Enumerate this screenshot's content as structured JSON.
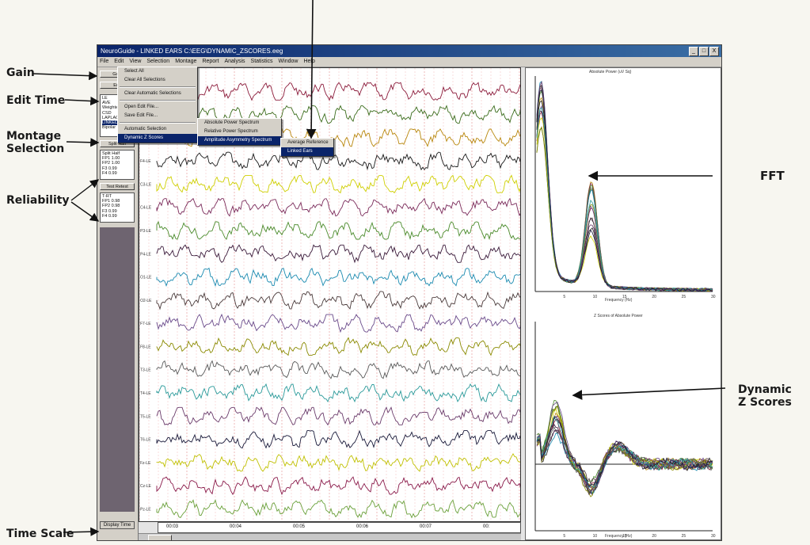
{
  "annotations": {
    "gain": "Gain",
    "edit_time": "Edit Time",
    "montage": "Montage\nSelection",
    "reliability": "Reliability",
    "time_scale": "Time Scale",
    "fft": "FFT",
    "dynamic_z": "Dynamic\nZ Scores"
  },
  "window": {
    "title": "NeuroGuide - LINKED EARS  C:\\EEG\\DYNAMIC_ZSCORES.eeg",
    "buttons": [
      "_",
      "□",
      "X"
    ]
  },
  "menubar": [
    "File",
    "Edit",
    "View",
    "Selection",
    "Montage",
    "Report",
    "Analysis",
    "Statistics",
    "Window",
    "Help"
  ],
  "edit_menu": {
    "items": [
      "Select All",
      "Clear All Selections",
      "Clear Automatic Selections",
      "Open Edit File...",
      "Save Edit File...",
      "Automatic Selection",
      "Dynamic Z Scores"
    ]
  },
  "sub_menu": {
    "items": [
      "Absolute Power Spectrum",
      "Relative Power Spectrum",
      "Amplitude Asymmetry Spectrum"
    ]
  },
  "sub_menu2": {
    "items": [
      "Average Reference",
      "Linked Ears"
    ]
  },
  "left_panel": {
    "gain_label": "Gain",
    "edit_label": "Edit",
    "montage_items": [
      "LE",
      "AVE",
      "Weighted",
      "CSD",
      "LAPLACIAN",
      "LINKED EARS",
      "Bipolar"
    ],
    "montage_selected": "LINKED EARS",
    "split_button": "Split Half",
    "reliability_header": "Split Half",
    "reliability_items": [
      "FP1 1.00",
      "FP2 1.00",
      "F3  0.99",
      "F4  0.99"
    ],
    "retest_button": "Test Retest",
    "retest_header": "T-RT",
    "retest_items": [
      "FP1 0.98",
      "FP2 0.98",
      "F3  0.99",
      "F4  0.99"
    ],
    "display_time": "Display Time"
  },
  "eeg": {
    "channels": [
      "Fp1-LE",
      "Fp2-LE",
      "F3-LE",
      "F4-LE",
      "C3-LE",
      "C4-LE",
      "P3-LE",
      "P4-LE",
      "O1-LE",
      "O2-LE",
      "F7-LE",
      "F8-LE",
      "T3-LE",
      "T4-LE",
      "T5-LE",
      "T6-LE",
      "Fz-LE",
      "Cz-LE",
      "Pz-LE"
    ],
    "times": [
      "00:03",
      "00:04",
      "00:05",
      "00:06",
      "00:07",
      "00:"
    ]
  },
  "fft_chart": {
    "title": "Absolute Power (uV Sq)",
    "xlabel": "Frequency (Hz)",
    "xticks": [
      "5",
      "10",
      "15",
      "20",
      "25",
      "30"
    ]
  },
  "z_chart": {
    "title": "Z Scores of Absolute Power",
    "xlabel": "Frequency (Hz)",
    "xticks": [
      "5",
      "10",
      "15",
      "20",
      "25",
      "30"
    ]
  },
  "colors": {
    "accent": "#0a246a",
    "trace_palette": [
      "#8b1a3a",
      "#3a6b1a",
      "#b8860b",
      "#1a1a1a",
      "#cfcf00",
      "#7a2a5a",
      "#4a8a2a",
      "#3a1a3a",
      "#1a8ab0",
      "#4a3a3a",
      "#6a4a8a",
      "#8a8a00",
      "#5a5a5a",
      "#2a9a9a",
      "#6a3a6a",
      "#1a1a3a",
      "#c0c000",
      "#8a1a4a",
      "#6aa03a"
    ]
  }
}
